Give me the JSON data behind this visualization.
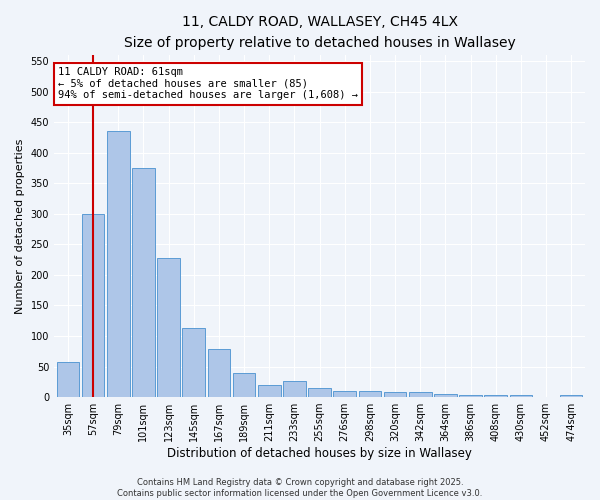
{
  "title1": "11, CALDY ROAD, WALLASEY, CH45 4LX",
  "title2": "Size of property relative to detached houses in Wallasey",
  "xlabel": "Distribution of detached houses by size in Wallasey",
  "ylabel": "Number of detached properties",
  "categories": [
    "35sqm",
    "57sqm",
    "79sqm",
    "101sqm",
    "123sqm",
    "145sqm",
    "167sqm",
    "189sqm",
    "211sqm",
    "233sqm",
    "255sqm",
    "276sqm",
    "298sqm",
    "320sqm",
    "342sqm",
    "364sqm",
    "386sqm",
    "408sqm",
    "430sqm",
    "452sqm",
    "474sqm"
  ],
  "values": [
    57,
    300,
    435,
    375,
    228,
    113,
    78,
    40,
    20,
    26,
    15,
    10,
    10,
    8,
    8,
    5,
    4,
    4,
    3,
    0,
    3
  ],
  "bar_color": "#aec6e8",
  "bar_edge_color": "#5b9bd5",
  "bar_width": 0.9,
  "vline_x": 1.0,
  "vline_color": "#cc0000",
  "annotation_text": "11 CALDY ROAD: 61sqm\n← 5% of detached houses are smaller (85)\n94% of semi-detached houses are larger (1,608) →",
  "annotation_box_color": "#ffffff",
  "annotation_box_edge": "#cc0000",
  "ylim": [
    0,
    560
  ],
  "yticks": [
    0,
    50,
    100,
    150,
    200,
    250,
    300,
    350,
    400,
    450,
    500,
    550
  ],
  "footer_text": "Contains HM Land Registry data © Crown copyright and database right 2025.\nContains public sector information licensed under the Open Government Licence v3.0.",
  "background_color": "#f0f4fa",
  "plot_background": "#f0f4fa",
  "grid_color": "#ffffff",
  "title_fontsize": 10,
  "subtitle_fontsize": 9,
  "annot_fontsize": 7.5,
  "ylabel_fontsize": 8,
  "xlabel_fontsize": 8.5,
  "tick_fontsize": 7,
  "footer_fontsize": 6
}
